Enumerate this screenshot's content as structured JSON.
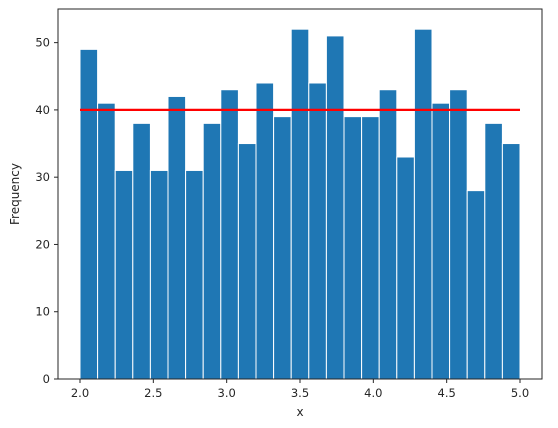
{
  "chart_data": {
    "type": "bar",
    "chart_kind": "histogram",
    "title": "",
    "xlabel": "x",
    "ylabel": "Frequency",
    "xlim": [
      1.85,
      5.15
    ],
    "ylim": [
      0,
      55
    ],
    "bin_edges": [
      2.0,
      2.12,
      2.24,
      2.36,
      2.48,
      2.6,
      2.72,
      2.84,
      2.96,
      3.08,
      3.2,
      3.32,
      3.44,
      3.56,
      3.68,
      3.8,
      3.92,
      4.04,
      4.16,
      4.28,
      4.4,
      4.52,
      4.64,
      4.76,
      4.88,
      5.0
    ],
    "values": [
      49,
      41,
      31,
      38,
      31,
      42,
      31,
      38,
      43,
      35,
      44,
      39,
      52,
      44,
      51,
      39,
      39,
      43,
      33,
      52,
      41,
      43,
      28,
      38,
      35
    ],
    "reference_line": {
      "x": [
        2.0,
        5.0
      ],
      "y": 40,
      "color": "#ff0000"
    },
    "x_ticks": [
      "2.0",
      "2.5",
      "3.0",
      "3.5",
      "4.0",
      "4.5",
      "5.0"
    ],
    "x_tick_values": [
      2.0,
      2.5,
      3.0,
      3.5,
      4.0,
      4.5,
      5.0
    ],
    "y_ticks": [
      "0",
      "10",
      "20",
      "30",
      "40",
      "50"
    ],
    "y_tick_values": [
      0,
      10,
      20,
      30,
      40,
      50
    ],
    "bar_color": "#1f77b4",
    "grid": false,
    "legend": "none"
  }
}
